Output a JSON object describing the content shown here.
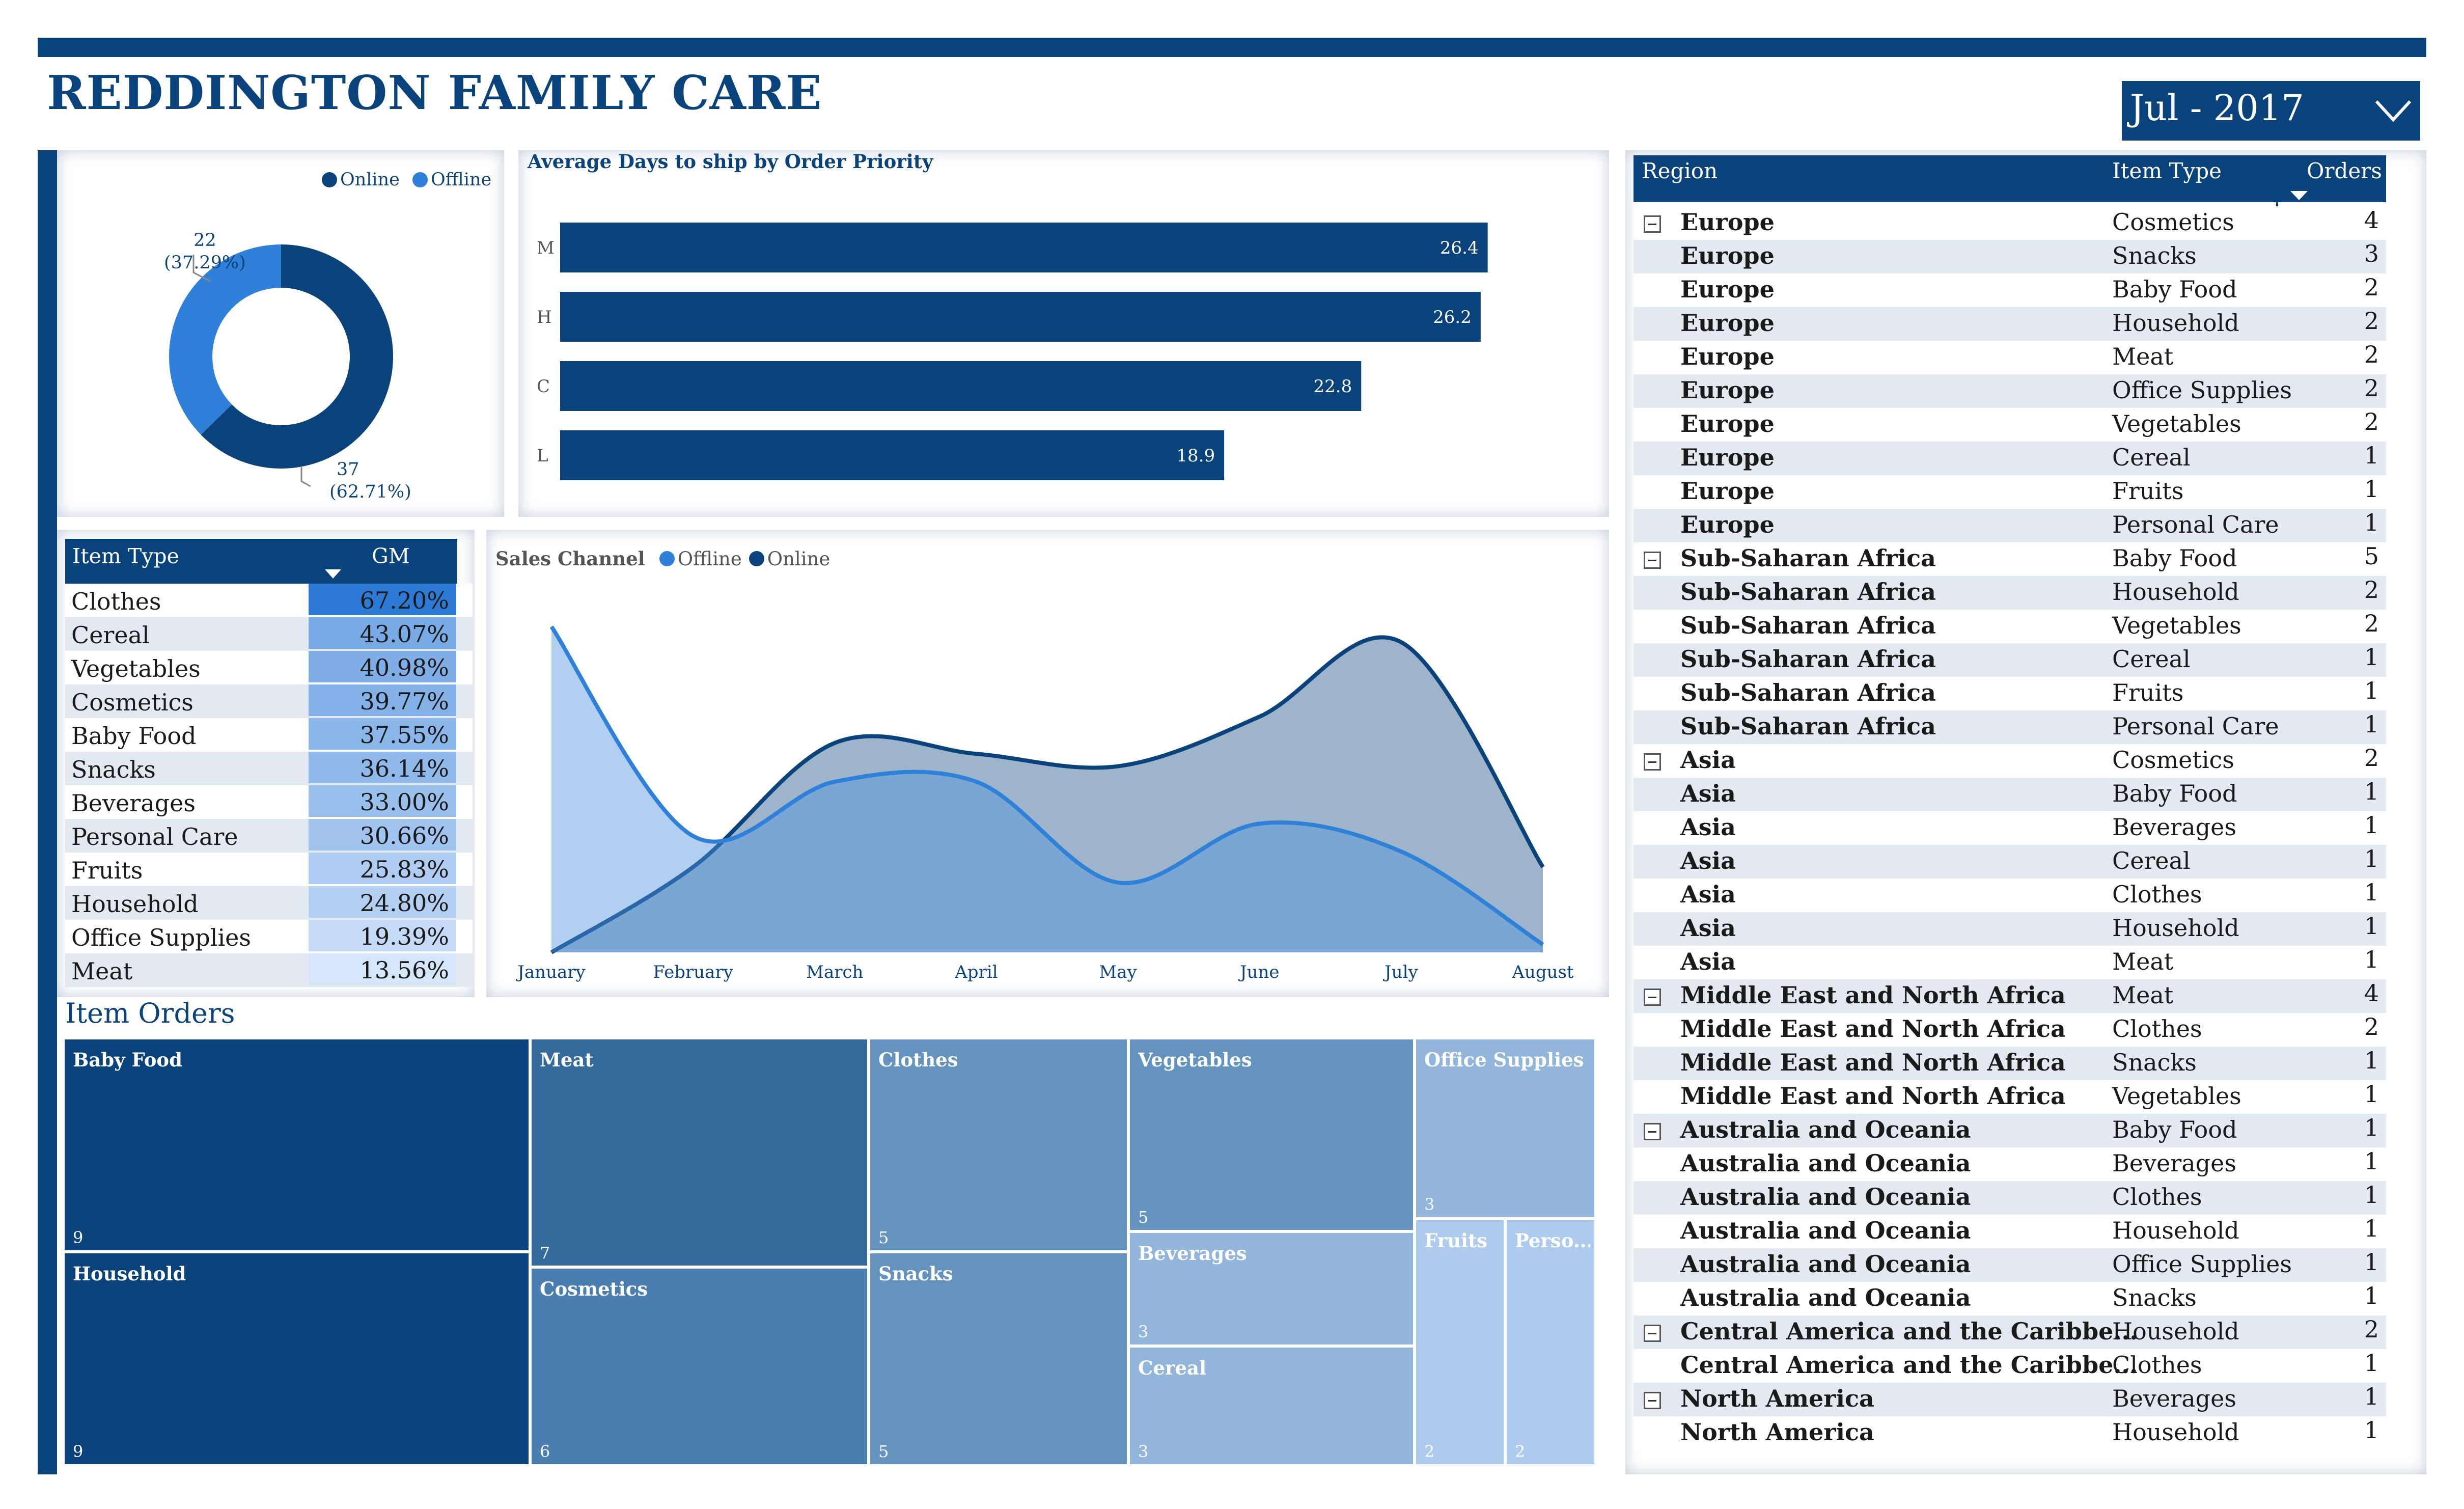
{
  "header": {
    "title": "REDDINGTON FAMILY CARE",
    "date_filter": "Jul - 2017"
  },
  "colors": {
    "brand": "#0a437b",
    "online": "#0a437b",
    "offline": "#2f80d8"
  },
  "donut": {
    "legend": [
      "Online",
      "Offline"
    ],
    "slices": [
      {
        "name": "Online",
        "value": 37,
        "pct_label": "(62.71%)",
        "value_label": "37"
      },
      {
        "name": "Offline",
        "value": 22,
        "pct_label": "(37.29%)",
        "value_label": "22"
      }
    ]
  },
  "chart_data": [
    {
      "type": "bar",
      "title": "Average Days to ship by Order Priority",
      "categories": [
        "M",
        "H",
        "C",
        "L"
      ],
      "values": [
        26.4,
        26.2,
        22.8,
        18.9
      ],
      "xlim": [
        0,
        28
      ]
    },
    {
      "type": "area",
      "title": "Sales Channel",
      "legend": [
        "Offline",
        "Online"
      ],
      "categories": [
        "January",
        "February",
        "March",
        "April",
        "May",
        "June",
        "July",
        "August"
      ],
      "series": [
        {
          "name": "Offline",
          "values": [
            2.1,
            0.75,
            1.1,
            1.1,
            0.45,
            0.83,
            0.65,
            0.05
          ]
        },
        {
          "name": "Online",
          "values": [
            0.0,
            0.55,
            1.35,
            1.28,
            1.2,
            1.52,
            2.0,
            0.55
          ]
        }
      ],
      "ylim": [
        0,
        2.2
      ]
    },
    {
      "type": "table",
      "title": "Item Orders",
      "categories": [
        "Baby Food",
        "Household",
        "Meat",
        "Cosmetics",
        "Clothes",
        "Snacks",
        "Vegetables",
        "Beverages",
        "Cereal",
        "Office Supplies",
        "Fruits",
        "Perso..."
      ],
      "values": [
        9,
        9,
        7,
        6,
        5,
        5,
        5,
        3,
        3,
        3,
        2,
        2
      ]
    }
  ],
  "gm_table": {
    "headers": [
      "Item Type",
      "GM"
    ],
    "rows": [
      {
        "item": "Clothes",
        "gm": "67.20%"
      },
      {
        "item": "Cereal",
        "gm": "43.07%"
      },
      {
        "item": "Vegetables",
        "gm": "40.98%"
      },
      {
        "item": "Cosmetics",
        "gm": "39.77%"
      },
      {
        "item": "Baby Food",
        "gm": "37.55%"
      },
      {
        "item": "Snacks",
        "gm": "36.14%"
      },
      {
        "item": "Beverages",
        "gm": "33.00%"
      },
      {
        "item": "Personal Care",
        "gm": "30.66%"
      },
      {
        "item": "Fruits",
        "gm": "25.83%"
      },
      {
        "item": "Household",
        "gm": "24.80%"
      },
      {
        "item": "Office Supplies",
        "gm": "19.39%"
      },
      {
        "item": "Meat",
        "gm": "13.56%"
      }
    ]
  },
  "treemap": {
    "title": "Item Orders",
    "cells": [
      {
        "name": "Baby Food",
        "value": "9",
        "color": "#0a437b"
      },
      {
        "name": "Household",
        "value": "9",
        "color": "#0a437b"
      },
      {
        "name": "Meat",
        "value": "7",
        "color": "#356a9c"
      },
      {
        "name": "Cosmetics",
        "value": "6",
        "color": "#4a7db0"
      },
      {
        "name": "Clothes",
        "value": "5",
        "color": "#6593c0"
      },
      {
        "name": "Snacks",
        "value": "5",
        "color": "#6593c0"
      },
      {
        "name": "Vegetables",
        "value": "5",
        "color": "#6593c0"
      },
      {
        "name": "Beverages",
        "value": "3",
        "color": "#92b5db"
      },
      {
        "name": "Cereal",
        "value": "3",
        "color": "#92b5db"
      },
      {
        "name": "Office Supplies",
        "value": "3",
        "color": "#92b5db"
      },
      {
        "name": "Fruits",
        "value": "2",
        "color": "#aecbee"
      },
      {
        "name": "Perso...",
        "value": "2",
        "color": "#aecbee"
      }
    ]
  },
  "region_table": {
    "headers": [
      "Region",
      "Item Type",
      "Orders"
    ],
    "rows": [
      {
        "region": "Europe",
        "item": "Cosmetics",
        "orders": "4",
        "group_start": true
      },
      {
        "region": "Europe",
        "item": "Snacks",
        "orders": "3"
      },
      {
        "region": "Europe",
        "item": "Baby Food",
        "orders": "2"
      },
      {
        "region": "Europe",
        "item": "Household",
        "orders": "2"
      },
      {
        "region": "Europe",
        "item": "Meat",
        "orders": "2"
      },
      {
        "region": "Europe",
        "item": "Office Supplies",
        "orders": "2"
      },
      {
        "region": "Europe",
        "item": "Vegetables",
        "orders": "2"
      },
      {
        "region": "Europe",
        "item": "Cereal",
        "orders": "1"
      },
      {
        "region": "Europe",
        "item": "Fruits",
        "orders": "1"
      },
      {
        "region": "Europe",
        "item": "Personal Care",
        "orders": "1"
      },
      {
        "region": "Sub-Saharan Africa",
        "item": "Baby Food",
        "orders": "5",
        "group_start": true
      },
      {
        "region": "Sub-Saharan Africa",
        "item": "Household",
        "orders": "2"
      },
      {
        "region": "Sub-Saharan Africa",
        "item": "Vegetables",
        "orders": "2"
      },
      {
        "region": "Sub-Saharan Africa",
        "item": "Cereal",
        "orders": "1"
      },
      {
        "region": "Sub-Saharan Africa",
        "item": "Fruits",
        "orders": "1"
      },
      {
        "region": "Sub-Saharan Africa",
        "item": "Personal Care",
        "orders": "1"
      },
      {
        "region": "Asia",
        "item": "Cosmetics",
        "orders": "2",
        "group_start": true
      },
      {
        "region": "Asia",
        "item": "Baby Food",
        "orders": "1"
      },
      {
        "region": "Asia",
        "item": "Beverages",
        "orders": "1"
      },
      {
        "region": "Asia",
        "item": "Cereal",
        "orders": "1"
      },
      {
        "region": "Asia",
        "item": "Clothes",
        "orders": "1"
      },
      {
        "region": "Asia",
        "item": "Household",
        "orders": "1"
      },
      {
        "region": "Asia",
        "item": "Meat",
        "orders": "1"
      },
      {
        "region": "Middle East and North Africa",
        "item": "Meat",
        "orders": "4",
        "group_start": true
      },
      {
        "region": "Middle East and North Africa",
        "item": "Clothes",
        "orders": "2"
      },
      {
        "region": "Middle East and North Africa",
        "item": "Snacks",
        "orders": "1"
      },
      {
        "region": "Middle East and North Africa",
        "item": "Vegetables",
        "orders": "1"
      },
      {
        "region": "Australia and Oceania",
        "item": "Baby Food",
        "orders": "1",
        "group_start": true
      },
      {
        "region": "Australia and Oceania",
        "item": "Beverages",
        "orders": "1"
      },
      {
        "region": "Australia and Oceania",
        "item": "Clothes",
        "orders": "1"
      },
      {
        "region": "Australia and Oceania",
        "item": "Household",
        "orders": "1"
      },
      {
        "region": "Australia and Oceania",
        "item": "Office Supplies",
        "orders": "1"
      },
      {
        "region": "Australia and Oceania",
        "item": "Snacks",
        "orders": "1"
      },
      {
        "region": "Central America and the Caribbe...",
        "item": "Household",
        "orders": "2",
        "group_start": true
      },
      {
        "region": "Central America and the Caribbe...",
        "item": "Clothes",
        "orders": "1"
      },
      {
        "region": "North America",
        "item": "Beverages",
        "orders": "1",
        "group_start": true
      },
      {
        "region": "North America",
        "item": "Household",
        "orders": "1"
      }
    ]
  }
}
